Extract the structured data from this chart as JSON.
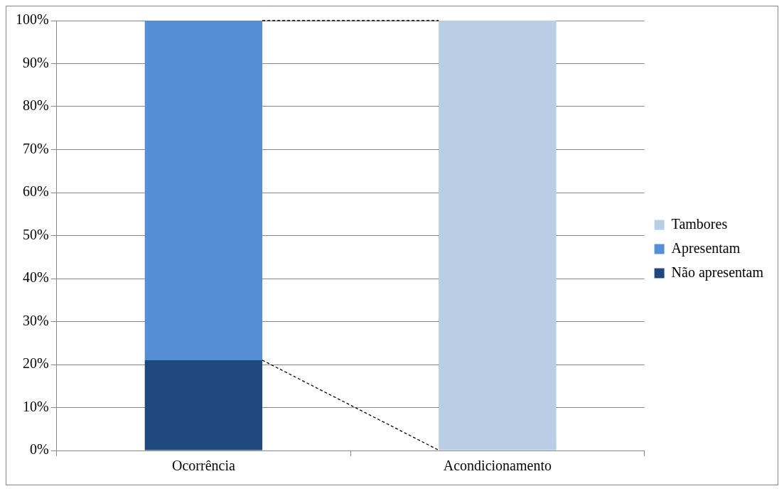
{
  "chart_data": {
    "type": "bar",
    "stacked": true,
    "categories": [
      "Ocorrência",
      "Acondicionamento"
    ],
    "series": [
      {
        "name": "Não apresentam",
        "color": "#1f497d",
        "values": [
          21,
          null
        ]
      },
      {
        "name": "Apresentam",
        "color": "#558ed5",
        "values": [
          79,
          null
        ]
      },
      {
        "name": "Tambores",
        "color": "#b9cde5",
        "values": [
          null,
          100
        ]
      }
    ],
    "ylim": [
      0,
      100
    ],
    "yticks": [
      {
        "value": 0,
        "label": "0%"
      },
      {
        "value": 10,
        "label": "10%"
      },
      {
        "value": 20,
        "label": "20%"
      },
      {
        "value": 30,
        "label": "30%"
      },
      {
        "value": 40,
        "label": "40%"
      },
      {
        "value": 50,
        "label": "50%"
      },
      {
        "value": 60,
        "label": "60%"
      },
      {
        "value": 70,
        "label": "70%"
      },
      {
        "value": 80,
        "label": "80%"
      },
      {
        "value": 90,
        "label": "90%"
      },
      {
        "value": 100,
        "label": "100%"
      }
    ],
    "grid": "y",
    "legend": "right"
  }
}
